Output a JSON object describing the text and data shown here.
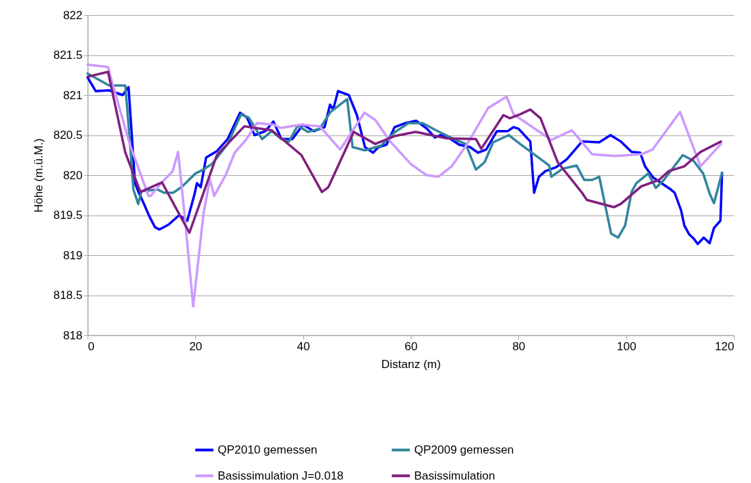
{
  "chart_data": {
    "type": "line",
    "xlabel": "Distanz (m)",
    "ylabel": "Höhe (m.ü.M.)",
    "xlim": [
      0,
      120
    ],
    "xticks": [
      0,
      20,
      40,
      60,
      80,
      100,
      120
    ],
    "ylim": [
      818,
      822
    ],
    "yticks": [
      818,
      818.5,
      819,
      819.5,
      820,
      820.5,
      821,
      821.5,
      822
    ],
    "grid": "y",
    "legend": "bottom",
    "series": [
      {
        "name": "QP2010 gemessen",
        "color": "#0000ff",
        "x": [
          0,
          1.5,
          4,
          6.5,
          7.6,
          8.8,
          9.5,
          10.4,
          11.5,
          12.5,
          13.3,
          15,
          17,
          18.5,
          19.8,
          20.3,
          21,
          22,
          24,
          26,
          28.3,
          29.6,
          31,
          33,
          34.5,
          36,
          38,
          40,
          42,
          44,
          45,
          45.6,
          46.5,
          48.5,
          50,
          51.5,
          53,
          54,
          55.5,
          57,
          59,
          61,
          63,
          64.5,
          65.5,
          67,
          69,
          71,
          72.5,
          74,
          76,
          78,
          79.1,
          80,
          82.2,
          82.9,
          83.8,
          85,
          87,
          89,
          91.8,
          95,
          97.1,
          99,
          101,
          102.6,
          103.5,
          105,
          108.3,
          109,
          110.2,
          110.8,
          111.7,
          112.5,
          113.3,
          114.4,
          115.5,
          116.3,
          117.5,
          117.8
        ],
        "values": [
          821.22,
          821.05,
          821.06,
          821.0,
          821.1,
          819.9,
          819.78,
          819.65,
          819.48,
          819.35,
          819.32,
          819.38,
          819.5,
          819.43,
          819.75,
          819.9,
          819.85,
          820.22,
          820.3,
          820.45,
          820.78,
          820.72,
          820.5,
          820.55,
          820.67,
          820.45,
          820.45,
          820.63,
          820.55,
          820.6,
          820.88,
          820.82,
          821.05,
          821.0,
          820.75,
          820.35,
          820.28,
          820.35,
          820.38,
          820.6,
          820.65,
          820.68,
          820.58,
          820.47,
          820.5,
          820.47,
          820.38,
          820.35,
          820.28,
          820.32,
          820.55,
          820.55,
          820.6,
          820.58,
          820.42,
          819.78,
          819.98,
          820.05,
          820.1,
          820.2,
          820.42,
          820.41,
          820.5,
          820.42,
          820.29,
          820.28,
          820.11,
          819.97,
          819.82,
          819.78,
          819.56,
          819.37,
          819.26,
          819.21,
          819.14,
          819.22,
          819.15,
          819.34,
          819.43,
          820.03
        ]
      },
      {
        "name": "QP2009 gemessen",
        "color": "#31859c",
        "x": [
          0,
          4,
          7,
          7.9,
          8.5,
          9.4,
          10,
          13,
          14.2,
          15.9,
          17.6,
          18.5,
          20,
          21.5,
          23.1,
          24.4,
          26,
          28.5,
          29.9,
          32.4,
          34.2,
          36,
          37.4,
          39,
          40.9,
          43.1,
          45.1,
          48.2,
          49.2,
          51.5,
          54.5,
          57.1,
          59.6,
          62.2,
          64.7,
          68,
          70.2,
          72.1,
          73.7,
          75.3,
          78.2,
          80.3,
          85.7,
          86.1,
          88.2,
          90.8,
          92.2,
          93.7,
          95,
          97.2,
          98.5,
          99.8,
          101,
          101.9,
          104.1,
          105.5,
          107,
          110.5,
          112.5,
          114.3,
          115.5,
          116.3,
          117.8
        ],
        "values": [
          821.27,
          821.12,
          821.12,
          820.37,
          819.82,
          819.64,
          819.8,
          819.82,
          819.78,
          819.78,
          819.86,
          819.92,
          820.02,
          820.07,
          820.14,
          820.25,
          820.39,
          820.76,
          820.72,
          820.45,
          820.55,
          820.45,
          820.42,
          820.62,
          820.54,
          820.58,
          820.79,
          820.95,
          820.35,
          820.31,
          820.37,
          820.54,
          820.65,
          820.65,
          820.56,
          820.45,
          820.39,
          820.07,
          820.16,
          820.41,
          820.5,
          820.39,
          820.12,
          819.98,
          820.08,
          820.12,
          819.94,
          819.94,
          819.98,
          819.27,
          819.22,
          819.37,
          819.79,
          819.9,
          820.02,
          819.84,
          819.94,
          820.25,
          820.18,
          820.02,
          819.77,
          819.65,
          820.03
        ]
      },
      {
        "name": "Basissimulation J=0.018",
        "color": "#cc99ff",
        "x": [
          0,
          3.8,
          4.1,
          7.9,
          11.3,
          11.7,
          13.8,
          15.8,
          16.8,
          18,
          19.6,
          21.5,
          22.7,
          23.5,
          25.7,
          27.3,
          29.5,
          31.4,
          34.6,
          35.8,
          39.7,
          43.1,
          46.9,
          51.4,
          53.4,
          56.2,
          60,
          62.9,
          65.1,
          67.6,
          70.5,
          74.4,
          77.8,
          79.1,
          86.1,
          89.9,
          93.7,
          97.9,
          102.8,
          104.9,
          110,
          113.8,
          117.6
        ],
        "values": [
          821.38,
          821.35,
          821.27,
          820.37,
          819.74,
          819.74,
          819.91,
          820.05,
          820.29,
          819.51,
          818.36,
          819.51,
          819.95,
          819.74,
          820.01,
          820.28,
          820.45,
          820.65,
          820.63,
          820.59,
          820.63,
          820.61,
          820.32,
          820.78,
          820.69,
          820.42,
          820.14,
          820.0,
          819.98,
          820.11,
          820.39,
          820.84,
          820.98,
          820.76,
          820.44,
          820.56,
          820.26,
          820.24,
          820.26,
          820.32,
          820.79,
          820.11,
          820.39
        ]
      },
      {
        "name": "Basissimulation",
        "color": "#7f1f7f",
        "x": [
          0,
          3.8,
          7,
          9.8,
          13.8,
          18.9,
          24,
          29.1,
          34.2,
          39.7,
          43.5,
          44.7,
          49.4,
          53.4,
          57.1,
          60.9,
          66.7,
          72.1,
          73.1,
          77.2,
          78.4,
          80.3,
          82.2,
          84.1,
          87.3,
          91.8,
          92.7,
          97.7,
          99,
          102.8,
          106.1,
          107.9,
          110.8,
          113.8,
          117.6
        ],
        "values": [
          821.23,
          821.29,
          820.28,
          819.79,
          819.91,
          819.28,
          820.25,
          820.61,
          820.56,
          820.25,
          819.79,
          819.85,
          820.54,
          820.39,
          820.49,
          820.54,
          820.46,
          820.45,
          820.33,
          820.75,
          820.71,
          820.76,
          820.82,
          820.71,
          820.16,
          819.78,
          819.69,
          819.6,
          819.64,
          819.86,
          819.94,
          820.05,
          820.11,
          820.29,
          820.42
        ]
      }
    ]
  }
}
